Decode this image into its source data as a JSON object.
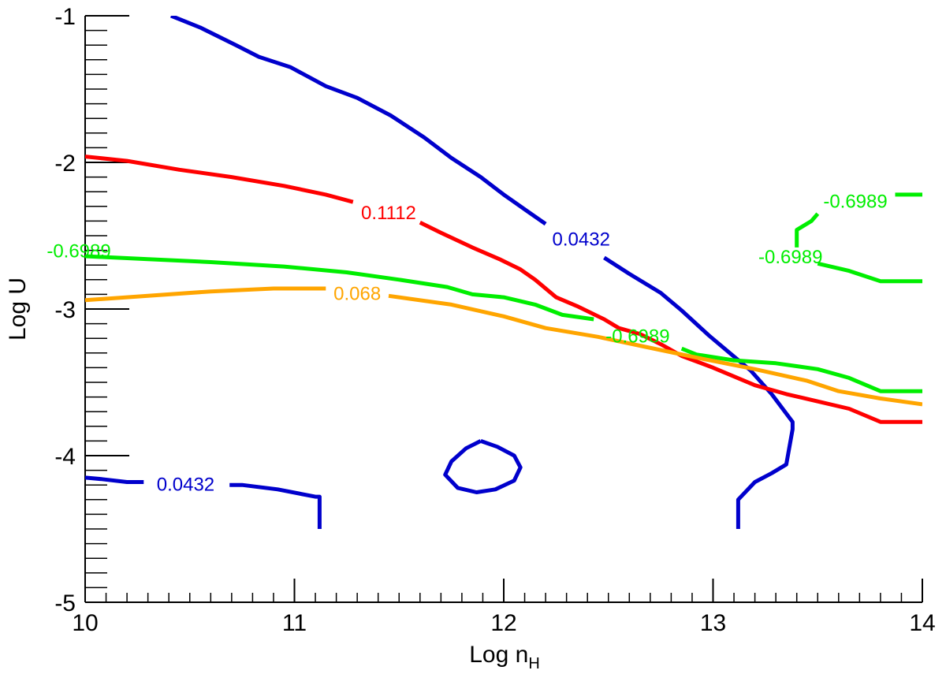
{
  "chart_data": {
    "type": "line",
    "subtype": "contour",
    "xlabel": "Log n",
    "xlabel_sub": "H",
    "ylabel": "Log U",
    "xlim": [
      10,
      14
    ],
    "ylim": [
      -5,
      -1
    ],
    "x_ticks": [
      {
        "value": 10,
        "label": "10"
      },
      {
        "value": 11,
        "label": "11"
      },
      {
        "value": 12,
        "label": "12"
      },
      {
        "value": 13,
        "label": "13"
      },
      {
        "value": 14,
        "label": "14"
      }
    ],
    "y_ticks": [
      {
        "value": -1,
        "label": "-1"
      },
      {
        "value": -2,
        "label": "-2"
      },
      {
        "value": -3,
        "label": "-3"
      },
      {
        "value": -4,
        "label": "-4"
      },
      {
        "value": -5,
        "label": "-5"
      }
    ],
    "minor_tick_step_x": 0.1,
    "minor_tick_step_y": 0.1,
    "grid": false,
    "series": [
      {
        "color": "#0000cc",
        "segments": [
          [
            [
              10.41,
              -1.0
            ],
            [
              10.55,
              -1.08
            ],
            [
              10.72,
              -1.2
            ],
            [
              10.83,
              -1.28
            ],
            [
              10.98,
              -1.35
            ],
            [
              11.15,
              -1.48
            ],
            [
              11.3,
              -1.56
            ],
            [
              11.46,
              -1.68
            ],
            [
              11.62,
              -1.83
            ],
            [
              11.75,
              -1.97
            ],
            [
              11.89,
              -2.1
            ],
            [
              12.0,
              -2.22
            ],
            [
              12.11,
              -2.33
            ],
            [
              12.2,
              -2.42
            ]
          ],
          [
            [
              12.48,
              -2.65
            ],
            [
              12.6,
              -2.76
            ],
            [
              12.75,
              -2.89
            ],
            [
              12.85,
              -3.01
            ],
            [
              12.98,
              -3.18
            ],
            [
              13.08,
              -3.3
            ],
            [
              13.18,
              -3.42
            ],
            [
              13.28,
              -3.58
            ],
            [
              13.38,
              -3.77
            ],
            [
              13.38,
              -3.82
            ],
            [
              13.35,
              -4.06
            ],
            [
              13.28,
              -4.12
            ],
            [
              13.2,
              -4.18
            ],
            [
              13.12,
              -4.3
            ],
            [
              13.12,
              -4.5
            ]
          ]
        ]
      },
      {
        "color": "#0000cc",
        "segments": [
          [
            [
              10.0,
              -4.15
            ],
            [
              10.08,
              -4.16
            ],
            [
              10.2,
              -4.18
            ],
            [
              10.28,
              -4.18
            ]
          ],
          [
            [
              10.69,
              -4.2
            ],
            [
              10.75,
              -4.2
            ],
            [
              10.92,
              -4.23
            ],
            [
              11.1,
              -4.28
            ],
            [
              11.12,
              -4.28
            ],
            [
              11.12,
              -4.5
            ]
          ]
        ]
      },
      {
        "color": "#0000cc",
        "segments": [
          [
            [
              11.89,
              -3.9
            ],
            [
              11.97,
              -3.94
            ],
            [
              12.05,
              -4.0
            ],
            [
              12.08,
              -4.08
            ],
            [
              12.05,
              -4.17
            ],
            [
              11.96,
              -4.23
            ],
            [
              11.87,
              -4.25
            ],
            [
              11.78,
              -4.22
            ],
            [
              11.72,
              -4.13
            ],
            [
              11.75,
              -4.04
            ],
            [
              11.82,
              -3.95
            ],
            [
              11.89,
              -3.9
            ]
          ]
        ]
      },
      {
        "color": "#ff0000",
        "segments": [
          [
            [
              10.0,
              -1.96
            ],
            [
              10.2,
              -1.99
            ],
            [
              10.45,
              -2.05
            ],
            [
              10.7,
              -2.1
            ],
            [
              10.95,
              -2.16
            ],
            [
              11.15,
              -2.22
            ],
            [
              11.28,
              -2.27
            ]
          ],
          [
            [
              11.6,
              -2.41
            ],
            [
              11.7,
              -2.48
            ],
            [
              11.85,
              -2.58
            ],
            [
              11.98,
              -2.66
            ],
            [
              12.08,
              -2.73
            ],
            [
              12.15,
              -2.8
            ],
            [
              12.25,
              -2.92
            ],
            [
              12.35,
              -2.98
            ],
            [
              12.48,
              -3.07
            ],
            [
              12.55,
              -3.13
            ],
            [
              12.65,
              -3.17
            ],
            [
              12.75,
              -3.24
            ],
            [
              12.85,
              -3.32
            ],
            [
              13.0,
              -3.4
            ],
            [
              13.2,
              -3.52
            ],
            [
              13.35,
              -3.58
            ],
            [
              13.5,
              -3.63
            ],
            [
              13.65,
              -3.68
            ],
            [
              13.8,
              -3.77
            ],
            [
              14.0,
              -3.77
            ]
          ]
        ]
      },
      {
        "color": "#00ee00",
        "segments": [
          [
            [
              10.0,
              -2.64
            ],
            [
              10.3,
              -2.66
            ],
            [
              10.6,
              -2.68
            ],
            [
              10.95,
              -2.71
            ],
            [
              11.25,
              -2.75
            ],
            [
              11.5,
              -2.8
            ],
            [
              11.73,
              -2.85
            ],
            [
              11.85,
              -2.9
            ],
            [
              12.0,
              -2.92
            ],
            [
              12.15,
              -2.97
            ],
            [
              12.28,
              -3.04
            ],
            [
              12.43,
              -3.07
            ]
          ],
          [
            [
              12.85,
              -3.27
            ],
            [
              12.92,
              -3.31
            ],
            [
              13.1,
              -3.35
            ],
            [
              13.3,
              -3.37
            ],
            [
              13.5,
              -3.41
            ],
            [
              13.65,
              -3.47
            ],
            [
              13.8,
              -3.56
            ],
            [
              14.0,
              -3.56
            ]
          ]
        ]
      },
      {
        "color": "#00ee00",
        "segments": [
          [
            [
              13.4,
              -2.58
            ],
            [
              13.4,
              -2.46
            ],
            [
              13.47,
              -2.4
            ],
            [
              13.5,
              -2.35
            ]
          ],
          [
            [
              13.87,
              -2.22
            ],
            [
              14.0,
              -2.22
            ]
          ]
        ]
      },
      {
        "color": "#00ee00",
        "segments": [
          [
            [
              13.5,
              -2.69
            ],
            [
              13.65,
              -2.74
            ],
            [
              13.8,
              -2.81
            ],
            [
              14.0,
              -2.81
            ]
          ]
        ]
      },
      {
        "color": "#ffa500",
        "segments": [
          [
            [
              10.0,
              -2.94
            ],
            [
              10.3,
              -2.91
            ],
            [
              10.6,
              -2.88
            ],
            [
              10.9,
              -2.86
            ],
            [
              11.15,
              -2.86
            ]
          ],
          [
            [
              11.45,
              -2.91
            ],
            [
              11.75,
              -2.97
            ],
            [
              12.0,
              -3.05
            ],
            [
              12.2,
              -3.13
            ],
            [
              12.45,
              -3.19
            ],
            [
              12.65,
              -3.25
            ],
            [
              12.95,
              -3.34
            ],
            [
              13.2,
              -3.41
            ],
            [
              13.45,
              -3.49
            ],
            [
              13.6,
              -3.56
            ],
            [
              13.8,
              -3.61
            ],
            [
              14.0,
              -3.65
            ]
          ]
        ]
      }
    ],
    "contour_labels": [
      {
        "text": "0.0432",
        "x": 12.37,
        "y": -2.52,
        "color": "#0000cc"
      },
      {
        "text": "0.0432",
        "x": 10.48,
        "y": -4.19,
        "color": "#0000cc"
      },
      {
        "text": "0.1112",
        "x": 11.45,
        "y": -2.34,
        "color": "#ff0000"
      },
      {
        "text": "-0.6989",
        "x": 13.68,
        "y": -2.26,
        "color": "#00ee00"
      },
      {
        "text": "-0.6989",
        "x": 13.37,
        "y": -2.64,
        "color": "#00ee00"
      },
      {
        "text": "-0.6989",
        "x": 12.64,
        "y": -3.18,
        "color": "#00ee00"
      },
      {
        "text": "-0.6989",
        "x": 9.97,
        "y": -2.6,
        "color": "#00ee00"
      },
      {
        "text": "0.068",
        "x": 11.3,
        "y": -2.89,
        "color": "#ffa500"
      }
    ]
  }
}
